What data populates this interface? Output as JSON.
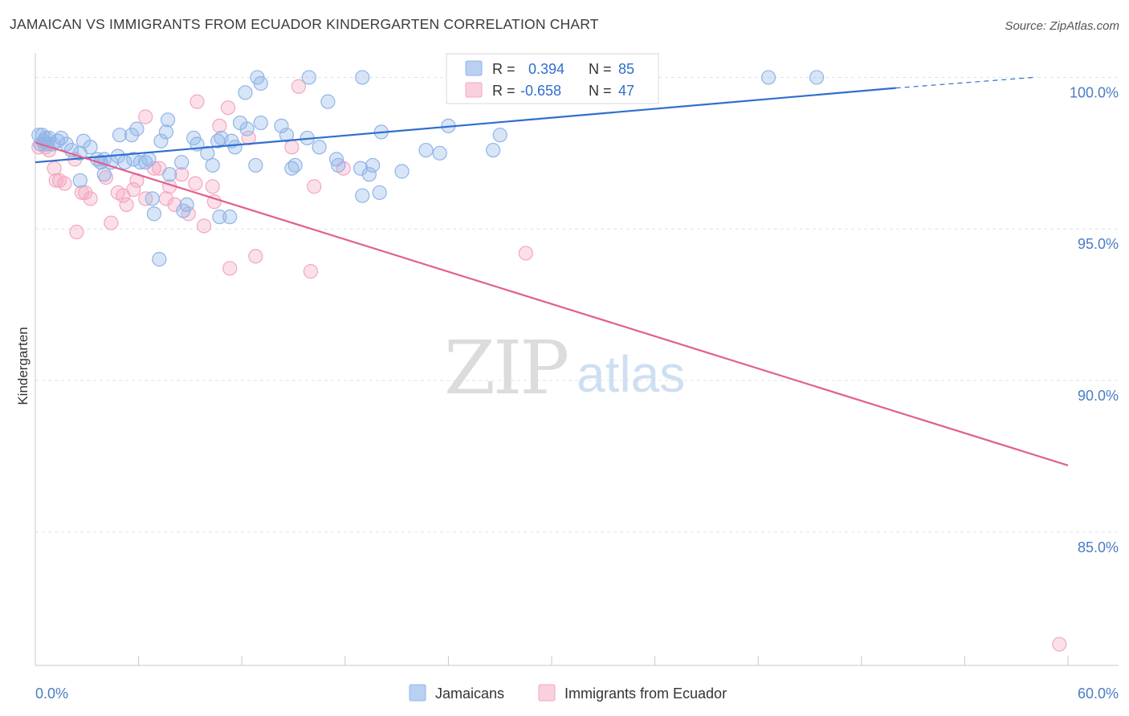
{
  "header": {
    "title": "JAMAICAN VS IMMIGRANTS FROM ECUADOR KINDERGARTEN CORRELATION CHART",
    "source": "Source: ZipAtlas.com"
  },
  "watermark": {
    "zip": "ZIP",
    "atlas": "atlas"
  },
  "colors": {
    "jamaicans": "#8fb4e8",
    "jamaicans_line": "#2f6fcf",
    "ecuador": "#f4a6c0",
    "ecuador_line": "#e0608c",
    "tick_text": "#4a7cc4",
    "grid": "#dde3ea"
  },
  "legend": {
    "row1": {
      "r_label": "R =",
      "r_value": "0.394",
      "n_label": "N =",
      "n_value": "85"
    },
    "row2": {
      "r_label": "R =",
      "r_value": "-0.658",
      "n_label": "N =",
      "n_value": "47"
    }
  },
  "chart_data": {
    "type": "scatter",
    "ylabel": "Kindergarten",
    "xlim": [
      0,
      60
    ],
    "ylim": [
      80.6,
      100.7
    ],
    "x_tick_labels": [
      "0.0%",
      "60.0%"
    ],
    "y_ticks": [
      85,
      90,
      95,
      100
    ],
    "y_tick_labels": [
      "85.0%",
      "90.0%",
      "95.0%",
      "100.0%"
    ],
    "grid": true,
    "legend_position": "top-center",
    "series": [
      {
        "name": "Jamaicans",
        "points": [
          [
            0.2,
            98.1
          ],
          [
            0.4,
            98.1
          ],
          [
            0.5,
            97.9
          ],
          [
            0.6,
            98.0
          ],
          [
            0.8,
            98.0
          ],
          [
            1.0,
            97.8
          ],
          [
            1.3,
            97.9
          ],
          [
            1.5,
            98.0
          ],
          [
            1.8,
            97.8
          ],
          [
            2.1,
            97.6
          ],
          [
            2.8,
            97.9
          ],
          [
            3.2,
            97.7
          ],
          [
            2.6,
            97.5
          ],
          [
            3.6,
            97.3
          ],
          [
            3.8,
            97.2
          ],
          [
            4.0,
            97.3
          ],
          [
            4.4,
            97.2
          ],
          [
            4.8,
            97.4
          ],
          [
            5.2,
            97.2
          ],
          [
            5.7,
            97.3
          ],
          [
            6.1,
            97.2
          ],
          [
            6.6,
            97.3
          ],
          [
            4.9,
            98.1
          ],
          [
            5.6,
            98.1
          ],
          [
            5.9,
            98.3
          ],
          [
            6.4,
            97.2
          ],
          [
            7.3,
            97.9
          ],
          [
            7.6,
            98.2
          ],
          [
            7.7,
            98.6
          ],
          [
            8.5,
            97.2
          ],
          [
            9.2,
            98.0
          ],
          [
            9.4,
            97.8
          ],
          [
            10.0,
            97.5
          ],
          [
            10.3,
            97.1
          ],
          [
            10.6,
            97.9
          ],
          [
            10.8,
            98.0
          ],
          [
            11.4,
            97.9
          ],
          [
            11.6,
            97.7
          ],
          [
            11.9,
            98.5
          ],
          [
            12.3,
            98.3
          ],
          [
            12.8,
            97.1
          ],
          [
            13.1,
            98.5
          ],
          [
            14.3,
            98.4
          ],
          [
            14.6,
            98.1
          ],
          [
            14.9,
            97.0
          ],
          [
            15.1,
            97.1
          ],
          [
            15.8,
            98.0
          ],
          [
            16.5,
            97.7
          ],
          [
            17.0,
            99.2
          ],
          [
            17.5,
            97.3
          ],
          [
            17.6,
            97.1
          ],
          [
            18.9,
            97.0
          ],
          [
            19.0,
            96.1
          ],
          [
            19.4,
            96.8
          ],
          [
            19.6,
            97.1
          ],
          [
            20.0,
            96.2
          ],
          [
            20.1,
            98.2
          ],
          [
            21.3,
            96.9
          ],
          [
            22.7,
            97.6
          ],
          [
            23.5,
            97.5
          ],
          [
            24.0,
            98.4
          ],
          [
            26.6,
            97.6
          ],
          [
            27.0,
            98.1
          ],
          [
            28.2,
            100.0
          ],
          [
            29.1,
            100.0
          ],
          [
            30.6,
            99.4
          ],
          [
            42.6,
            100.0
          ],
          [
            45.4,
            100.0
          ],
          [
            12.2,
            99.5
          ],
          [
            12.9,
            100.0
          ],
          [
            13.1,
            99.8
          ],
          [
            15.9,
            100.0
          ],
          [
            19.0,
            100.0
          ],
          [
            2.6,
            96.6
          ],
          [
            4.0,
            96.8
          ],
          [
            6.8,
            96.0
          ],
          [
            7.8,
            96.8
          ],
          [
            8.8,
            95.8
          ],
          [
            6.9,
            95.5
          ],
          [
            8.6,
            95.6
          ],
          [
            10.7,
            95.4
          ],
          [
            11.3,
            95.4
          ],
          [
            7.2,
            94.0
          ],
          [
            0.3,
            97.8
          ],
          [
            0.7,
            97.8
          ]
        ]
      },
      {
        "name": "Immigrants from Ecuador",
        "points": [
          [
            0.2,
            97.7
          ],
          [
            0.5,
            97.8
          ],
          [
            0.8,
            97.6
          ],
          [
            1.1,
            97.0
          ],
          [
            1.4,
            96.6
          ],
          [
            1.7,
            96.5
          ],
          [
            2.3,
            97.3
          ],
          [
            2.9,
            96.2
          ],
          [
            3.2,
            96.0
          ],
          [
            3.8,
            97.2
          ],
          [
            4.1,
            96.7
          ],
          [
            4.8,
            96.2
          ],
          [
            5.1,
            96.1
          ],
          [
            5.3,
            95.8
          ],
          [
            5.7,
            96.3
          ],
          [
            5.9,
            96.6
          ],
          [
            6.4,
            96.0
          ],
          [
            6.9,
            97.0
          ],
          [
            7.2,
            97.0
          ],
          [
            7.6,
            96.0
          ],
          [
            7.8,
            96.4
          ],
          [
            8.1,
            95.8
          ],
          [
            8.5,
            96.8
          ],
          [
            8.9,
            95.5
          ],
          [
            9.3,
            96.5
          ],
          [
            9.8,
            95.1
          ],
          [
            10.3,
            96.4
          ],
          [
            10.4,
            95.9
          ],
          [
            10.7,
            98.4
          ],
          [
            11.2,
            99.0
          ],
          [
            12.4,
            98.0
          ],
          [
            14.9,
            97.7
          ],
          [
            16.2,
            96.4
          ],
          [
            17.9,
            97.0
          ],
          [
            2.4,
            94.9
          ],
          [
            4.4,
            95.2
          ],
          [
            11.3,
            93.7
          ],
          [
            12.8,
            94.1
          ],
          [
            16.0,
            93.6
          ],
          [
            28.5,
            94.2
          ],
          [
            1.2,
            96.6
          ],
          [
            6.4,
            98.7
          ],
          [
            9.4,
            99.2
          ],
          [
            15.3,
            99.7
          ],
          [
            0.6,
            97.7
          ],
          [
            2.7,
            96.2
          ],
          [
            59.5,
            81.3
          ]
        ]
      }
    ],
    "trendlines": [
      {
        "series": "Jamaicans",
        "x": [
          0,
          50
        ],
        "y": [
          97.2,
          99.65
        ],
        "dashed_extension_to": [
          58,
          100.0
        ]
      },
      {
        "series": "Immigrants from Ecuador",
        "x": [
          0,
          60
        ],
        "y": [
          97.85,
          87.2
        ]
      }
    ]
  },
  "bottom_legend": {
    "item1": "Jamaicans",
    "item2": "Immigrants from Ecuador"
  }
}
